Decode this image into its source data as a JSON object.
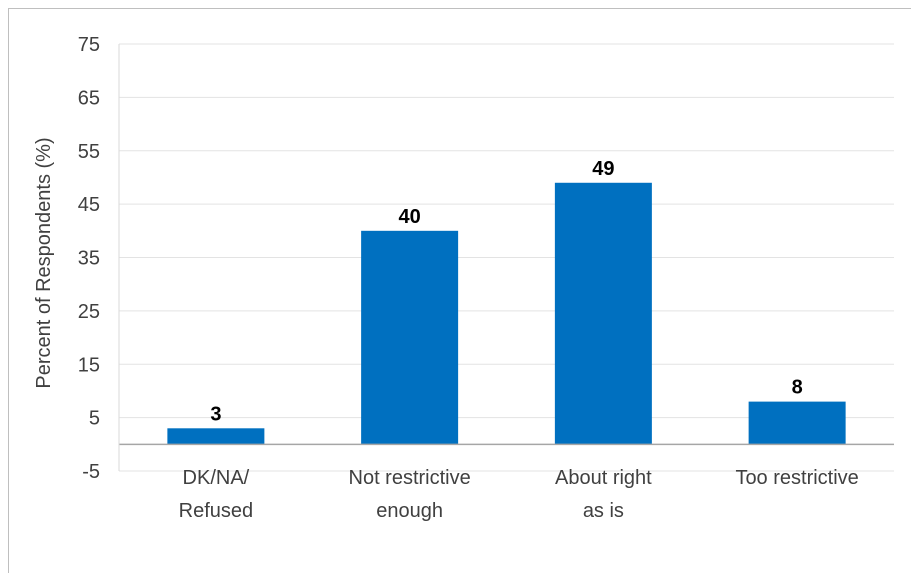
{
  "chart_data": {
    "type": "bar",
    "title": "",
    "xlabel": "",
    "ylabel": "Percent of Respondents (%)",
    "ylim": [
      -5,
      75
    ],
    "yticks": [
      75,
      65,
      55,
      45,
      35,
      25,
      15,
      5,
      -5
    ],
    "categories": [
      [
        "DK/NA/",
        "Refused"
      ],
      [
        "Not restrictive",
        "enough"
      ],
      [
        "About right",
        "as is"
      ],
      [
        "Too restrictive"
      ]
    ],
    "values": [
      3,
      40,
      49,
      8
    ],
    "bar_color": "#0070C0",
    "grid": true,
    "legend": "none"
  }
}
